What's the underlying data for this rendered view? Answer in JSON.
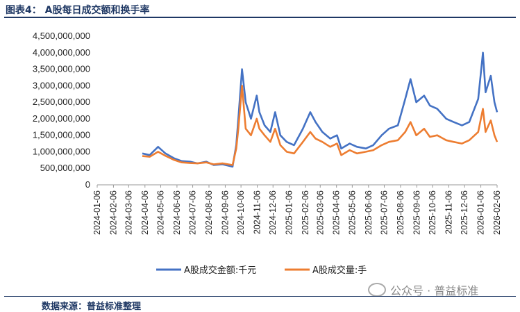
{
  "header": {
    "title": "图表4：  A股每日成交额和换手率"
  },
  "footer": {
    "source": "数据来源：普益标准整理",
    "watermark": "公众号 · 普益标准"
  },
  "colors": {
    "series_amount": "#4472c4",
    "series_volume": "#ed7d31",
    "title": "#1f3864"
  },
  "chart_data": {
    "type": "line",
    "title": "",
    "xlabel": "",
    "ylabel": "",
    "ylim": [
      0,
      4500000000
    ],
    "yticks": [
      0,
      500000000,
      1000000000,
      1500000000,
      2000000000,
      2500000000,
      3000000000,
      3500000000,
      4000000000,
      4500000000
    ],
    "ytick_labels": [
      "0",
      "500,000,000",
      "1,000,000,000",
      "1,500,000,000",
      "2,000,000,000",
      "2,500,000,000",
      "3,000,000,000",
      "3,500,000,000",
      "4,000,000,000",
      "4,500,000,000"
    ],
    "xtick_labels": [
      "2024-01-06",
      "2024-02-06",
      "2024-03-06",
      "2024-04-06",
      "2024-05-06",
      "2024-06-06",
      "2024-07-06",
      "2024-08-06",
      "2024-09-06",
      "2024-10-06",
      "2024-11-06",
      "2024-12-06",
      "2025-01-06",
      "2025-02-06",
      "2025-03-06",
      "2025-04-06",
      "2025-05-06",
      "2025-06-06",
      "2025-07-06",
      "2025-08-06",
      "2025-09-06",
      "2025-10-06",
      "2025-11-06",
      "2025-12-06",
      "2026-01-06",
      "2026-02-06"
    ],
    "legend_position": "bottom",
    "grid": false,
    "x": [
      "2024-04-01",
      "2024-04-15",
      "2024-05-01",
      "2024-05-15",
      "2024-06-01",
      "2024-06-15",
      "2024-07-01",
      "2024-07-15",
      "2024-08-01",
      "2024-08-15",
      "2024-09-01",
      "2024-09-20",
      "2024-09-27",
      "2024-10-01",
      "2024-10-08",
      "2024-10-15",
      "2024-10-25",
      "2024-11-05",
      "2024-11-10",
      "2024-11-20",
      "2024-12-01",
      "2024-12-10",
      "2024-12-20",
      "2025-01-01",
      "2025-01-15",
      "2025-02-01",
      "2025-02-15",
      "2025-02-25",
      "2025-03-10",
      "2025-03-25",
      "2025-04-07",
      "2025-04-15",
      "2025-05-01",
      "2025-05-15",
      "2025-06-01",
      "2025-06-15",
      "2025-07-01",
      "2025-07-15",
      "2025-08-01",
      "2025-08-15",
      "2025-08-25",
      "2025-09-05",
      "2025-09-20",
      "2025-10-01",
      "2025-10-15",
      "2025-11-01",
      "2025-11-15",
      "2025-12-01",
      "2025-12-15",
      "2026-01-01",
      "2026-01-10",
      "2026-01-15",
      "2026-01-25",
      "2026-02-01",
      "2026-02-06"
    ],
    "series": [
      {
        "name": "A股成交金额:千元",
        "color": "#4472c4",
        "values": [
          950000000,
          900000000,
          1150000000,
          950000000,
          800000000,
          720000000,
          700000000,
          650000000,
          700000000,
          600000000,
          620000000,
          550000000,
          1200000000,
          2000000000,
          3500000000,
          2500000000,
          2000000000,
          2700000000,
          2200000000,
          1800000000,
          1600000000,
          2200000000,
          1500000000,
          1300000000,
          1200000000,
          1700000000,
          2200000000,
          1900000000,
          1600000000,
          1400000000,
          1500000000,
          1100000000,
          1250000000,
          1150000000,
          1100000000,
          1200000000,
          1500000000,
          1700000000,
          1800000000,
          2600000000,
          3200000000,
          2500000000,
          2700000000,
          2400000000,
          2300000000,
          2000000000,
          1900000000,
          1800000000,
          1900000000,
          2600000000,
          4000000000,
          2800000000,
          3300000000,
          2500000000,
          2200000000
        ]
      },
      {
        "name": "A股成交量:手",
        "color": "#ed7d31",
        "values": [
          870000000,
          850000000,
          1000000000,
          880000000,
          750000000,
          680000000,
          660000000,
          650000000,
          680000000,
          620000000,
          650000000,
          600000000,
          1100000000,
          1700000000,
          3000000000,
          1700000000,
          1500000000,
          2000000000,
          1700000000,
          1500000000,
          1300000000,
          1700000000,
          1200000000,
          1000000000,
          950000000,
          1300000000,
          1600000000,
          1400000000,
          1300000000,
          1150000000,
          1250000000,
          900000000,
          1050000000,
          950000000,
          1000000000,
          1050000000,
          1200000000,
          1300000000,
          1350000000,
          1600000000,
          1900000000,
          1500000000,
          1700000000,
          1450000000,
          1500000000,
          1350000000,
          1300000000,
          1250000000,
          1350000000,
          1600000000,
          2300000000,
          1600000000,
          1950000000,
          1500000000,
          1300000000
        ]
      }
    ]
  }
}
